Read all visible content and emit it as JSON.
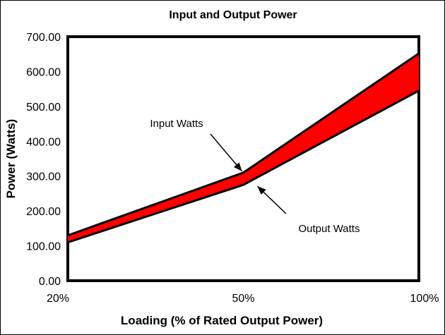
{
  "chart_data": {
    "type": "area",
    "title": "Input and Output Power",
    "xlabel": "Loading (% of Rated Output Power)",
    "ylabel": "Power (Watts)",
    "categories": [
      "20%",
      "50%",
      "100%"
    ],
    "series": [
      {
        "name": "Input Watts",
        "values": [
          130,
          310,
          652
        ]
      },
      {
        "name": "Output Watts",
        "values": [
          110,
          275,
          545
        ]
      }
    ],
    "ylim": [
      0,
      700
    ],
    "yticks": [
      "0.00",
      "100.00",
      "200.00",
      "300.00",
      "400.00",
      "500.00",
      "600.00",
      "700.00"
    ],
    "grid": false,
    "legend": "none",
    "fill_color": "#ff0000",
    "annotations": [
      {
        "text": "Input Watts",
        "series": "Input Watts",
        "category": "50%"
      },
      {
        "text": "Output Watts",
        "series": "Output Watts",
        "category": "50%"
      }
    ]
  }
}
